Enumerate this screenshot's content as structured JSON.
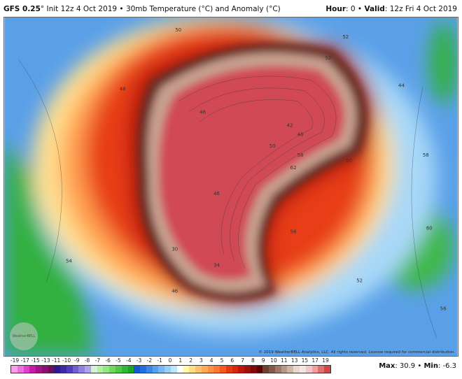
{
  "header": {
    "model": "GFS 0.25",
    "deg": "°",
    "init": " Init 12z 4 Oct 2019 • 30mb Temperature (°C) and Anomaly (°C)",
    "hour_label": "Hour",
    "hour": ": 0 • ",
    "valid_label": "Valid",
    "valid": ": 12z Fri 4 Oct 2019"
  },
  "map": {
    "copyright": "© 2019 WeatherBELL Analytics, LLC. All rights reserved. License required for commercial distribution.",
    "logo": "WeatherBELL",
    "contour_labels": [
      "50",
      "52",
      "52",
      "48",
      "46",
      "42",
      "48",
      "50",
      "58",
      "62",
      "50",
      "44",
      "30",
      "34",
      "46",
      "54",
      "56",
      "58",
      "60",
      "46",
      "52",
      "56"
    ]
  },
  "colorbar": {
    "labels": [
      "-19",
      "-17",
      "-15",
      "-13",
      "-11",
      "-10",
      "-9",
      "-8",
      "-7",
      "-6",
      "-5",
      "-4",
      "-3",
      "-2",
      "-1",
      "0",
      "1",
      "2",
      "3",
      "4",
      "5",
      "6",
      "7",
      "8",
      "9",
      "10",
      "11",
      "13",
      "15",
      "17",
      "19"
    ],
    "colors": [
      "#f7a0e8",
      "#ee70dc",
      "#e040c8",
      "#c81aa8",
      "#a81088",
      "#881070",
      "#681058",
      "#2a1a90",
      "#3a2aaa",
      "#5040c0",
      "#7060d0",
      "#9080e0",
      "#b0a0f0",
      "#d8f0d8",
      "#b0f0a0",
      "#90e880",
      "#70d860",
      "#50c840",
      "#30b830",
      "#18a828",
      "#1858d0",
      "#2070e0",
      "#3c88ea",
      "#58a0f0",
      "#78b8f4",
      "#98d0f8",
      "#b8e8fc",
      "#ffffff",
      "#fffab0",
      "#ffe088",
      "#ffc070",
      "#ffa858",
      "#ff9040",
      "#ff7830",
      "#f85820",
      "#e83810",
      "#d82808",
      "#c01808",
      "#a01008",
      "#800808",
      "#600000",
      "#704030",
      "#885848",
      "#a07868",
      "#b89888",
      "#d0b8a8",
      "#e8d8d0",
      "#f4e8e4",
      "#f0c8c8",
      "#f0a0a0",
      "#e07070",
      "#d04848"
    ]
  },
  "stats": {
    "max_label": "Max",
    "max": ": 30.9 • ",
    "min_label": "Min",
    "min": ": -6.3"
  },
  "colors": {
    "core": "#d04a55",
    "ring": "#6a3028",
    "band": "#e84018",
    "ocean": "#4a90e0",
    "green": "#30b040"
  }
}
